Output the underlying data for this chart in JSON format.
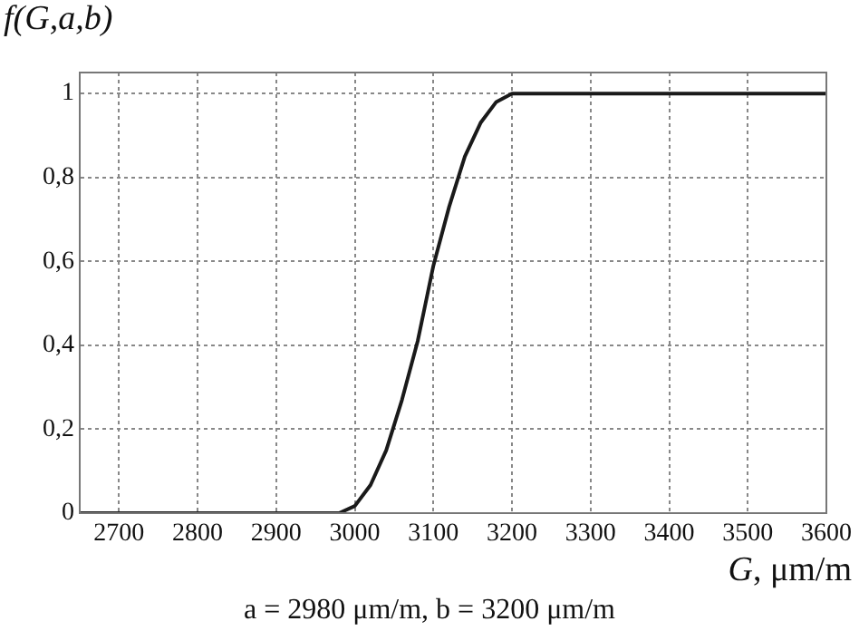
{
  "chart_data": {
    "type": "line",
    "ylabel": "f(G,a,b)",
    "xlabel": "G, μm/m",
    "annotations": [
      "a = 2980 μm/m, b = 3200 μm/m"
    ],
    "x": [
      2650,
      2980,
      3000,
      3020,
      3040,
      3060,
      3080,
      3090,
      3100,
      3120,
      3140,
      3160,
      3180,
      3200,
      3600
    ],
    "series": [
      {
        "color": "#1a1a1a",
        "values": [
          0,
          0,
          0.017,
          0.067,
          0.15,
          0.27,
          0.41,
          0.5,
          0.59,
          0.73,
          0.85,
          0.93,
          0.98,
          1,
          1
        ]
      }
    ],
    "xlim": [
      2650,
      3600
    ],
    "xticks": [
      2700,
      2800,
      2900,
      3000,
      3100,
      3200,
      3300,
      3400,
      3500,
      3600
    ],
    "ylim": [
      0,
      1.05
    ],
    "yticks": [
      0,
      {
        "value": 0.2,
        "label": "0,2"
      },
      {
        "value": 0.4,
        "label": "0,4"
      },
      {
        "value": 0.6,
        "label": "0,6"
      },
      {
        "value": 0.8,
        "label": "0,8"
      },
      1
    ],
    "grid": true,
    "legend": false,
    "marker": "none",
    "line_style": "solid"
  }
}
